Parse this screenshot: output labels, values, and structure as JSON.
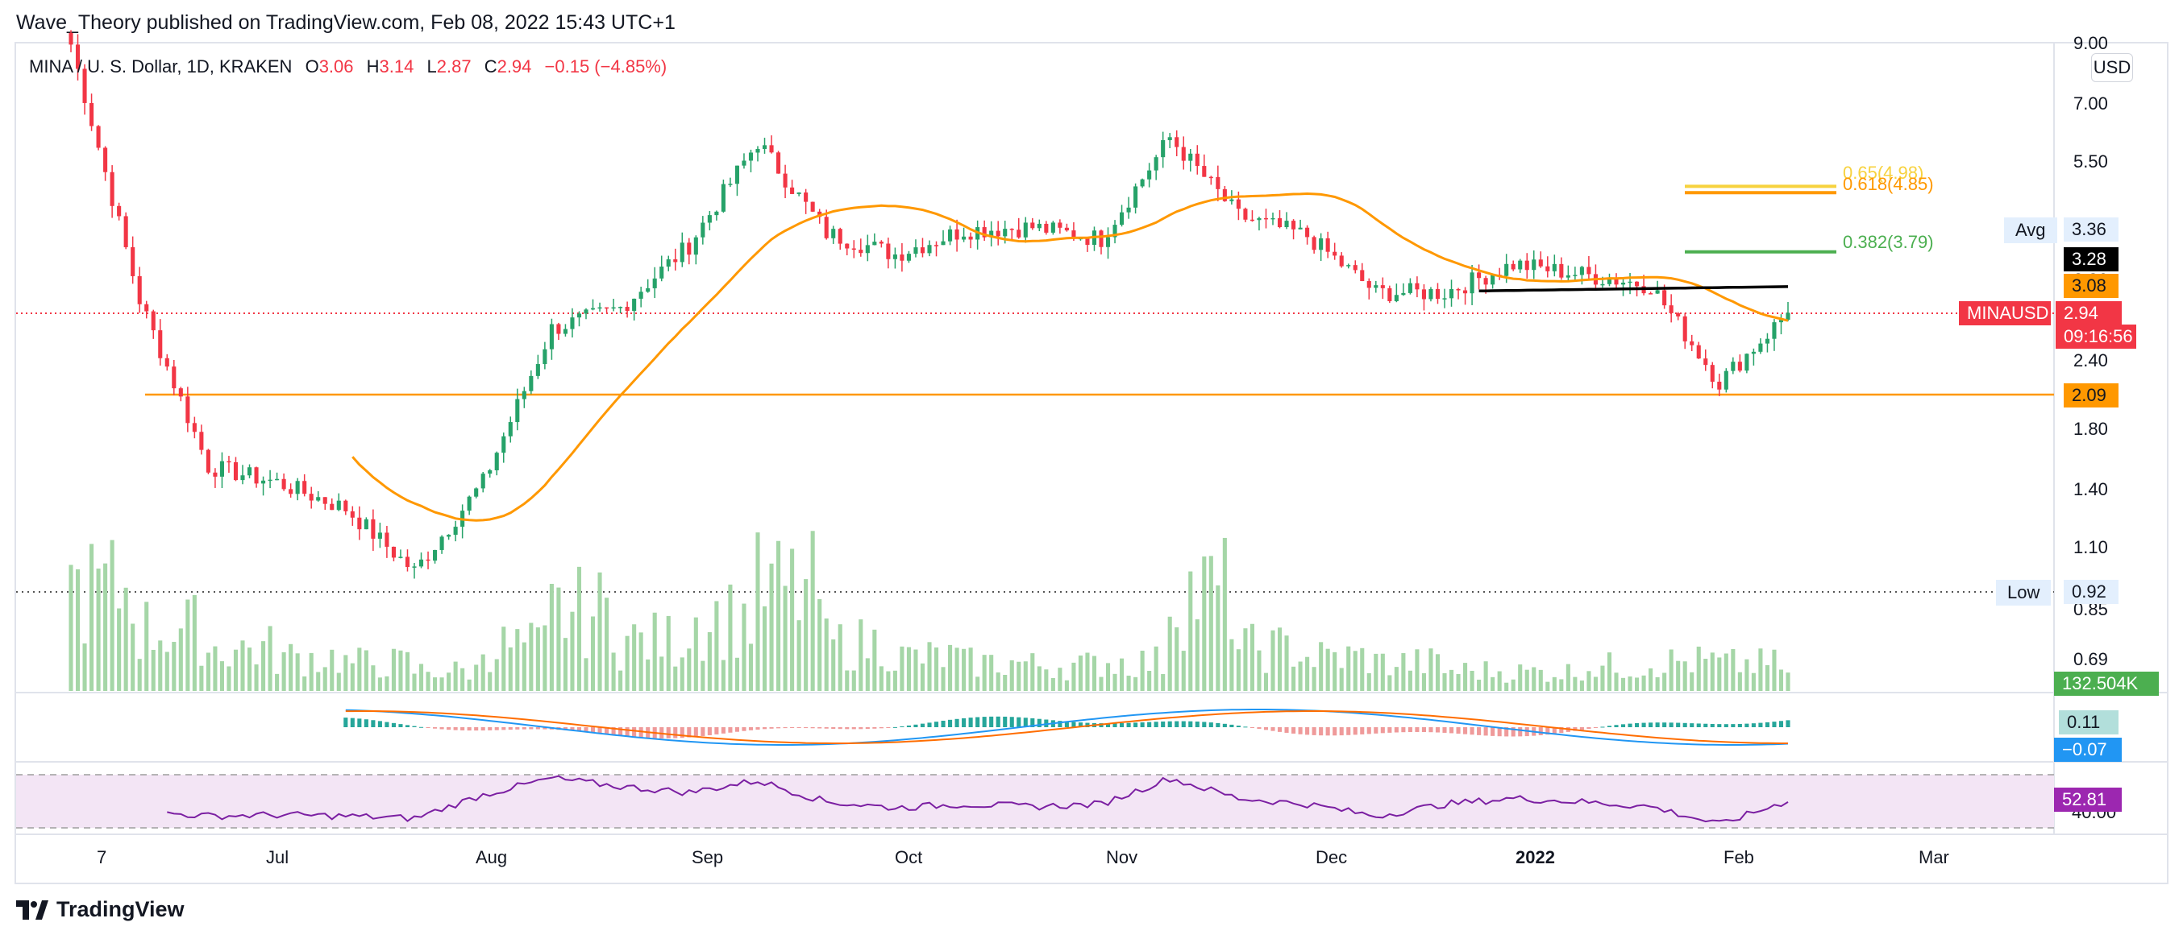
{
  "header": {
    "published_by": "Wave_Theory published on TradingView.com, Feb 08, 2022 15:43 UTC+1"
  },
  "legend": {
    "symbol": "MINA / U. S. Dollar, 1D, KRAKEN",
    "o_label": "O",
    "o_value": "3.06",
    "h_label": "H",
    "h_value": "3.14",
    "l_label": "L",
    "l_value": "2.87",
    "c_label": "C",
    "c_value": "2.94",
    "change": "−0.15 (−4.85%)"
  },
  "currency_button": "USD",
  "price_axis_ticks": [
    "9.00",
    "7.00",
    "5.50",
    "3.36",
    "2.40",
    "1.80",
    "1.40",
    "1.10",
    "0.85",
    "0.69"
  ],
  "price_tags": {
    "avg_label": "Avg",
    "avg_value": "3.36",
    "ma_black": "3.28",
    "ma_orange": "3.08",
    "symbol_tag": "MINAUSD",
    "last_price": "2.94",
    "countdown": "09:16:56",
    "support": "2.09",
    "low_label": "Low",
    "low_value": "0.92",
    "volume": "132.504K",
    "macd_hist": "0.11",
    "macd_signal": "−0.07",
    "rsi_value": "52.81",
    "rsi_level": "40.00"
  },
  "fib_levels": [
    {
      "label": "0.65(4.98)",
      "value": 4.98,
      "color": "#f7d23e"
    },
    {
      "label": "0.618(4.85)",
      "value": 4.85,
      "color": "#ff9800"
    },
    {
      "label": "0.382(3.79)",
      "value": 3.79,
      "color": "#4caf50"
    }
  ],
  "time_axis": [
    "7",
    "Jul",
    "Aug",
    "Sep",
    "Oct",
    "Nov",
    "Dec",
    "2022",
    "Feb",
    "Mar"
  ],
  "colors": {
    "up": "#26a269",
    "down": "#f23645",
    "ma50": "#ff9800",
    "ma200": "#000000",
    "volume": "#a5d6a7",
    "macd": "#2196f3",
    "signal": "#ff6d00",
    "rsi": "#7b1fa2",
    "rsi_band": "#f3e5f5"
  },
  "branding": {
    "logo_text": "TradingView"
  },
  "chart_data": {
    "type": "candlestick",
    "title": "MINA / U. S. Dollar, 1D, KRAKEN",
    "y_scale": "log",
    "ylim": [
      0.62,
      9.5
    ],
    "x": [
      "2021-06-02",
      "2021-06-12",
      "2021-06-22",
      "2021-07-02",
      "2021-07-12",
      "2021-07-22",
      "2021-08-01",
      "2021-08-11",
      "2021-08-21",
      "2021-08-31",
      "2021-09-10",
      "2021-09-20",
      "2021-09-30",
      "2021-10-10",
      "2021-10-20",
      "2021-10-30",
      "2021-11-09",
      "2021-11-19",
      "2021-11-29",
      "2021-12-09",
      "2021-12-19",
      "2021-12-29",
      "2022-01-08",
      "2022-01-18",
      "2022-01-28",
      "2022-02-08"
    ],
    "close": [
      9.0,
      3.1,
      1.55,
      1.45,
      1.3,
      1.0,
      1.45,
      2.75,
      3.0,
      3.9,
      6.0,
      4.1,
      3.75,
      4.15,
      4.2,
      4.0,
      6.1,
      4.4,
      4.05,
      3.2,
      3.2,
      3.6,
      3.45,
      3.3,
      2.2,
      2.94
    ],
    "volume_k": [
      900,
      550,
      380,
      300,
      250,
      180,
      400,
      700,
      450,
      650,
      900,
      420,
      300,
      250,
      230,
      260,
      880,
      380,
      300,
      250,
      180,
      170,
      220,
      260,
      240,
      132.504
    ],
    "rsi": [
      45,
      44,
      40,
      41,
      40,
      38,
      58,
      72,
      65,
      60,
      70,
      52,
      47,
      50,
      48,
      50,
      72,
      55,
      50,
      40,
      50,
      55,
      52,
      48,
      33,
      52.81
    ],
    "indicators": {
      "ma_orange_last": 3.08,
      "ma_black_last": 3.28,
      "support": 2.09,
      "low": 0.92,
      "avg": 3.36
    }
  }
}
